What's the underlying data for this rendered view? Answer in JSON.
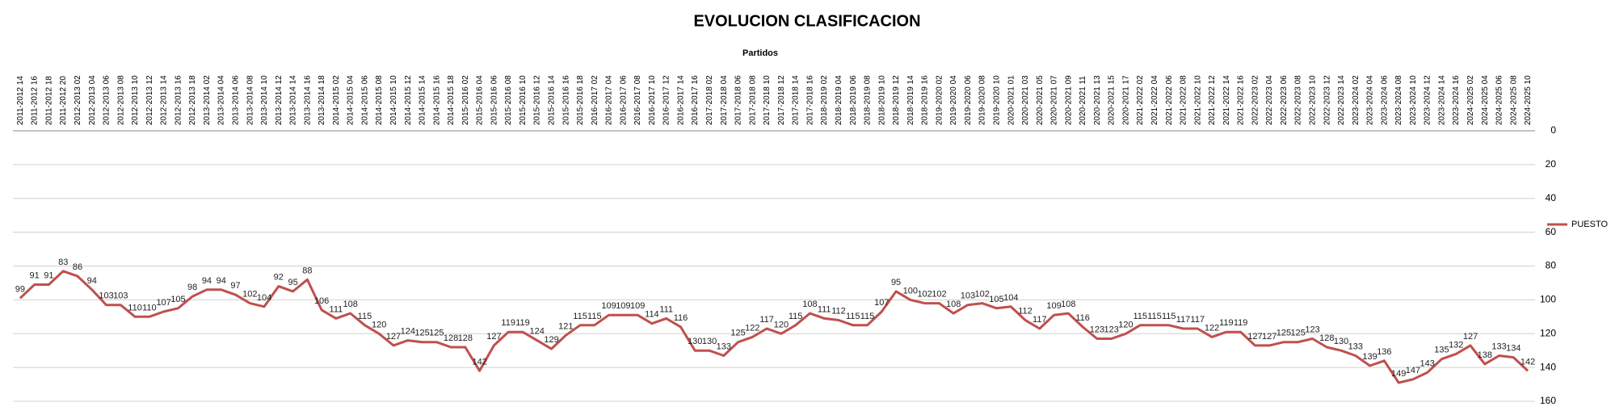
{
  "chart_data": {
    "type": "line",
    "title": "EVOLUCION CLASIFICACION",
    "x_label": "Partidos",
    "categories": [
      "2011-2012 14",
      "2011-2012 16",
      "2011-2012 18",
      "2011-2012 20",
      "2012-2013 02",
      "2012-2013 04",
      "2012-2013 06",
      "2012-2013 08",
      "2012-2013 10",
      "2012-2013 12",
      "2012-2013 14",
      "2012-2013 16",
      "2012-2013 18",
      "2013-2014 02",
      "2013-2014 04",
      "2013-2014 06",
      "2013-2014 08",
      "2013-2014 10",
      "2013-2014 12",
      "2013-2014 14",
      "2013-2014 16",
      "2013-2014 18",
      "2014-2015 02",
      "2014-2015 04",
      "2014-2015 06",
      "2014-2015 08",
      "2014-2015 10",
      "2014-2015 12",
      "2014-2015 14",
      "2014-2015 16",
      "2014-2015 18",
      "2015-2016 02",
      "2015-2016 04",
      "2015-2016 06",
      "2015-2016 08",
      "2015-2016 10",
      "2015-2016 12",
      "2015-2016 14",
      "2015-2016 16",
      "2015-2016 18",
      "2016-2017 02",
      "2016-2017 04",
      "2016-2017 06",
      "2016-2017 08",
      "2016-2017 10",
      "2016-2017 12",
      "2016-2017 14",
      "2016-2017 16",
      "2017-2018 02",
      "2017-2018 04",
      "2017-2018 06",
      "2017-2018 08",
      "2017-2018 10",
      "2017-2018 12",
      "2017-2018 14",
      "2017-2018 16",
      "2018-2019 02",
      "2018-2019 04",
      "2018-2019 06",
      "2018-2019 08",
      "2018-2019 10",
      "2018-2019 12",
      "2018-2019 14",
      "2018-2019 16",
      "2019-2020 02",
      "2019-2020 04",
      "2019-2020 06",
      "2019-2020 08",
      "2019-2020 10",
      "2020-2021 01",
      "2020-2021 03",
      "2020-2021 05",
      "2020-2021 07",
      "2020-2021 09",
      "2020-2021 11",
      "2020-2021 13",
      "2020-2021 15",
      "2020-2021 17",
      "2021-2022 02",
      "2021-2022 04",
      "2021-2022 06",
      "2021-2022 08",
      "2021-2022 10",
      "2021-2022 12",
      "2021-2022 14",
      "2021-2022 16",
      "2022-2023 02",
      "2022-2023 04",
      "2022-2023 06",
      "2022-2023 08",
      "2022-2023 10",
      "2022-2023 12",
      "2022-2023 14",
      "2023-2024 02",
      "2023-2024 04",
      "2023-2024 06",
      "2023-2024 08",
      "2023-2024 10",
      "2023-2024 12",
      "2023-2024 14",
      "2023-2024 16",
      "2024-2025 02",
      "2024-2025 04",
      "2024-2025 06",
      "2024-2025 08",
      "2024-2025 10"
    ],
    "series": [
      {
        "name": "PUESTO",
        "color": "#c0504d",
        "values": [
          99,
          91,
          91,
          83,
          86,
          94,
          103,
          103,
          110,
          110,
          107,
          105,
          98,
          94,
          94,
          97,
          102,
          104,
          92,
          95,
          88,
          106,
          111,
          108,
          115,
          120,
          127,
          124,
          125,
          125,
          128,
          128,
          142,
          127,
          119,
          119,
          124,
          129,
          121,
          115,
          115,
          109,
          109,
          109,
          114,
          111,
          116,
          130,
          130,
          133,
          125,
          122,
          117,
          120,
          115,
          108,
          111,
          112,
          115,
          115,
          107,
          95,
          100,
          102,
          102,
          108,
          103,
          102,
          105,
          104,
          112,
          117,
          109,
          108,
          116,
          123,
          123,
          120,
          115,
          115,
          115,
          117,
          117,
          122,
          119,
          119,
          127,
          127,
          125,
          125,
          123,
          128,
          130,
          133,
          139,
          136,
          149,
          147,
          143,
          135,
          132,
          127,
          138,
          133,
          134,
          142
        ]
      }
    ],
    "ylim": [
      0,
      160
    ],
    "yticks": [
      0,
      20,
      40,
      60,
      80,
      100,
      120,
      140,
      160
    ],
    "y_reversed": true,
    "y_axis_side": "right",
    "grid": true,
    "legend": "right"
  }
}
